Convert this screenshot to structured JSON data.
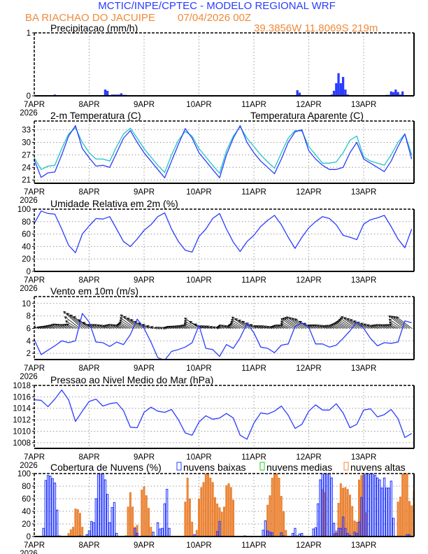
{
  "header": {
    "title": "MCTIC/INPE/CPTEC - MODELO REGIONAL WRF",
    "location": "BA RIACHAO DO JACUIPE",
    "datetime": "07/04/2026 00Z",
    "coords": "39.3856W 11.8069S 219m"
  },
  "colors": {
    "title": "#2a3cff",
    "subtitle": "#f08a3a",
    "blue": "#2a3cff",
    "cyan": "#22c4c4",
    "green": "#22cc22",
    "orange": "#f08a3a",
    "grid": "#9a9a9a"
  },
  "x_axis": {
    "day_labels": [
      "7APR",
      "8APR",
      "9APR",
      "10APR",
      "11APR",
      "12APR",
      "13APR"
    ],
    "year": "2026"
  },
  "times_3h": [
    "7APR 00Z",
    "7APR 03Z",
    "7APR 06Z",
    "7APR 09Z",
    "7APR 12Z",
    "7APR 15Z",
    "7APR 18Z",
    "7APR 21Z",
    "8APR 00Z",
    "8APR 03Z",
    "8APR 06Z",
    "8APR 09Z",
    "8APR 12Z",
    "8APR 15Z",
    "8APR 18Z",
    "8APR 21Z",
    "9APR 00Z",
    "9APR 03Z",
    "9APR 06Z",
    "9APR 09Z",
    "9APR 12Z",
    "9APR 15Z",
    "9APR 18Z",
    "9APR 21Z",
    "10APR 00Z",
    "10APR 03Z",
    "10APR 06Z",
    "10APR 09Z",
    "10APR 12Z",
    "10APR 15Z",
    "10APR 18Z",
    "10APR 21Z",
    "11APR 00Z",
    "11APR 03Z",
    "11APR 06Z",
    "11APR 09Z",
    "11APR 12Z",
    "11APR 15Z",
    "11APR 18Z",
    "11APR 21Z",
    "12APR 00Z",
    "12APR 03Z",
    "12APR 06Z",
    "12APR 09Z",
    "12APR 12Z",
    "12APR 15Z",
    "12APR 18Z",
    "12APR 21Z",
    "13APR 00Z",
    "13APR 03Z",
    "13APR 06Z",
    "13APR 09Z",
    "13APR 12Z",
    "13APR 15Z",
    "13APR 18Z",
    "13APR 21Z"
  ],
  "chart_data": [
    {
      "type": "bar",
      "title": "Precipitacao (mm/h)",
      "ylim": [
        0,
        1
      ],
      "yticks": [
        0,
        1
      ],
      "grid": true,
      "bar_runs_hourly": [
        {
          "start": "7APR 09Z",
          "values": [
            0.02
          ]
        },
        {
          "start": "8APR 04Z",
          "values": [
            0.01
          ]
        },
        {
          "start": "8APR 07Z",
          "values": [
            0.1,
            0.08,
            0,
            0.02,
            0.02,
            0.02,
            0.02,
            0.04,
            0.015,
            0.015
          ]
        },
        {
          "start": "8APR 20Z",
          "values": [
            0.01
          ]
        },
        {
          "start": "11APR 19Z",
          "values": [
            0.09,
            0.05
          ]
        },
        {
          "start": "12APR 05Z",
          "values": [
            0.005,
            0.005,
            0.005
          ]
        },
        {
          "start": "12APR 10Z",
          "values": [
            0.02,
            0.08,
            0.2,
            0.36,
            0.2,
            0.3,
            0.1,
            0.02,
            0.01
          ]
        },
        {
          "start": "13APR 05Z",
          "values": [
            0.01
          ]
        },
        {
          "start": "13APR 10Z",
          "values": [
            0.015,
            0.015,
            0.07,
            0.06,
            0.1,
            0.06,
            0.02,
            0.07
          ]
        }
      ]
    },
    {
      "type": "line",
      "title": "2-m Temperatura (C)",
      "ylim": [
        20.2,
        35.1
      ],
      "yticks": [
        21,
        24,
        27,
        30,
        33
      ],
      "grid": true,
      "series": [
        {
          "key": "temperature",
          "color": "blue",
          "values": [
            25.8,
            21.6,
            22.7,
            22.9,
            27,
            31.5,
            34,
            28.5,
            26.3,
            24.3,
            24.5,
            24.0,
            27.5,
            31,
            32.8,
            30,
            27.5,
            25.5,
            23.5,
            21.5,
            25.5,
            29.5,
            33.3,
            31,
            27.5,
            25.5,
            23.5,
            21.5,
            27,
            31,
            34,
            30,
            27.5,
            25.5,
            24,
            22.5,
            26,
            30,
            32.5,
            33,
            28,
            26,
            24.5,
            23.5,
            23.5,
            24,
            27.5,
            30,
            26,
            25,
            24,
            23,
            25.5,
            29,
            32,
            26
          ]
        },
        {
          "key": "apparent",
          "name": "Temperatura Aparente (C)",
          "color": "cyan",
          "values": [
            26.3,
            23.5,
            24.3,
            24.5,
            28.5,
            32,
            33.5,
            30,
            27.5,
            26,
            26,
            25.5,
            29,
            32,
            33.4,
            31,
            28.5,
            26.5,
            24.5,
            22.8,
            27,
            30.5,
            32.6,
            31.5,
            28.5,
            26.5,
            24.5,
            22.6,
            28,
            31.5,
            33.7,
            31,
            29,
            27,
            25.3,
            23.8,
            27.5,
            31,
            32.8,
            32.7,
            29,
            27,
            25,
            25,
            25.3,
            27.5,
            30.5,
            31.5,
            26.5,
            25.5,
            25,
            24.5,
            27,
            30,
            32,
            27
          ]
        }
      ]
    },
    {
      "type": "line",
      "title": "Umidade Relativa em 2m (%)",
      "ylim": [
        0,
        100
      ],
      "yticks": [
        0,
        20,
        40,
        60,
        80,
        100
      ],
      "grid": true,
      "series": [
        {
          "key": "rh",
          "color": "blue",
          "values": [
            77,
            97,
            93,
            92,
            68,
            42,
            30,
            60,
            73,
            85,
            84,
            88,
            68,
            48,
            40,
            52,
            66,
            75,
            88,
            94,
            68,
            48,
            34,
            31,
            56,
            68,
            85,
            93,
            68,
            47,
            32,
            48,
            58,
            72,
            82,
            90,
            75,
            55,
            37,
            55,
            70,
            80,
            88,
            85,
            75,
            58,
            55,
            51,
            76,
            83,
            86,
            90,
            72,
            52,
            38,
            68
          ]
        }
      ]
    },
    {
      "type": "line",
      "title": "Vento em 10m (m/s)",
      "ylim": [
        1,
        11.1
      ],
      "yticks": [
        2,
        4,
        6,
        8,
        10
      ],
      "grid": true,
      "vector_baseline": 6,
      "series": [
        {
          "key": "wind_speed",
          "color": "blue",
          "values": [
            4.2,
            1.8,
            2.5,
            3.2,
            4.0,
            3.7,
            4.0,
            8.4,
            7.0,
            3.8,
            3.7,
            3.1,
            3.8,
            3.4,
            5.0,
            7.5,
            6.0,
            3.8,
            1.3,
            0.9,
            2.3,
            2.6,
            3.0,
            3.7,
            6.5,
            2.8,
            2.6,
            1.5,
            3.4,
            2.8,
            4.5,
            6.8,
            5.3,
            3.0,
            2.8,
            2.1,
            3.3,
            3.5,
            6.3,
            6.9,
            6.2,
            3.5,
            3.5,
            3.0,
            3.3,
            4.4,
            5.6,
            7.0,
            6.0,
            4.4,
            3.2,
            3.7,
            3.6,
            3.8,
            7.2,
            6.9
          ]
        }
      ]
    },
    {
      "type": "line",
      "title": "Pressao ao Nivel Medio do Mar (hPa)",
      "ylim": [
        1007,
        1018
      ],
      "yticks": [
        1008,
        1010,
        1012,
        1014,
        1016,
        1018
      ],
      "grid": true,
      "series": [
        {
          "key": "mslp",
          "color": "blue",
          "values": [
            1015.5,
            1015.4,
            1014.3,
            1015.6,
            1017.2,
            1015.5,
            1011.7,
            1013.5,
            1015.2,
            1015.6,
            1014.4,
            1014.8,
            1015.0,
            1013.6,
            1010.7,
            1010.6,
            1013.3,
            1014.2,
            1013.5,
            1013.3,
            1013.8,
            1012.0,
            1009.7,
            1009.3,
            1011.6,
            1012.7,
            1012.1,
            1012.3,
            1013.1,
            1012.3,
            1009.3,
            1008.6,
            1011.4,
            1013.2,
            1013.0,
            1013.5,
            1014.4,
            1012.8,
            1010.5,
            1011.2,
            1013.5,
            1014.6,
            1013.7,
            1013.7,
            1014.8,
            1013.2,
            1010.6,
            1011.2,
            1013.7,
            1013.9,
            1012.5,
            1012.9,
            1013.8,
            1012.2,
            1008.9,
            1009.6
          ]
        }
      ]
    },
    {
      "type": "bar",
      "title": "Cobertura de Nuvens (%)",
      "ylim": [
        0,
        100
      ],
      "yticks": [
        0,
        20,
        40,
        60,
        80,
        100
      ],
      "grid": true,
      "legend": "top",
      "series": [
        {
          "key": "low",
          "name": "nuvens baixas",
          "color": "blue",
          "style": "outline",
          "runs_hourly": [
            {
              "start": "7APR 04Z",
              "values": [
                13,
                89,
                97,
                96,
                92,
                85,
                42,
                1
              ]
            },
            {
              "start": "7APR 20Z",
              "values": [
                1
              ]
            },
            {
              "start": "7APR 23Z",
              "values": [
                3,
                9,
                24,
                22,
                60,
                100,
                100,
                100,
                90,
                67,
                22,
                46,
                54,
                5
              ]
            },
            {
              "start": "8APR 20Z",
              "values": [
                13,
                5
              ]
            },
            {
              "start": "9APR 04Z",
              "values": [
                7,
                0,
                22,
                12,
                13,
                52,
                75,
                13
              ]
            },
            {
              "start": "9APR 22Z",
              "values": [
                3
              ]
            },
            {
              "start": "10APR 08Z",
              "values": [
                8,
                24
              ]
            },
            {
              "start": "10APR 20Z",
              "values": [
                1
              ]
            },
            {
              "start": "11APR 04Z",
              "values": [
                10,
                25,
                9,
                7,
                6
              ]
            },
            {
              "start": "11APR 12Z",
              "values": [
                6,
                1
              ]
            },
            {
              "start": "11APR 17Z",
              "values": [
                5,
                13,
                1,
                4,
                5
              ]
            },
            {
              "start": "12APR 02Z",
              "values": [
                12,
                14,
                52,
                90,
                100,
                100,
                100,
                100,
                93,
                21,
                5,
                13,
                13,
                31,
                13,
                5,
                2
              ]
            },
            {
              "start": "12APR 20Z",
              "values": [
                7,
                5,
                23,
                62,
                97,
                100,
                100,
                100,
                100,
                97,
                93,
                90,
                77,
                93,
                77,
                77,
                88,
                29
              ]
            },
            {
              "start": "13APR 19Z",
              "values": [
                3,
                3
              ]
            }
          ]
        },
        {
          "key": "medium",
          "name": "nuvens medias",
          "color": "green",
          "style": "outline",
          "runs_hourly": [
            {
              "start": "8APR 16Z",
              "values": [
                1
              ]
            }
          ]
        },
        {
          "key": "high",
          "name": "nuvens altas",
          "color": "orange",
          "style": "filled",
          "runs_hourly": [
            {
              "start": "7APR 15Z",
              "values": [
                5,
                11,
                15,
                44,
                43,
                37,
                15
              ]
            },
            {
              "start": "8APR 17Z",
              "values": [
                47,
                70,
                47,
                15,
                18
              ]
            },
            {
              "start": "8APR 23Z",
              "values": [
                74,
                79,
                65,
                45,
                15
              ]
            },
            {
              "start": "9APR 18Z",
              "values": [
                55,
                93,
                60,
                23
              ]
            },
            {
              "start": "9APR 23Z",
              "values": [
                10,
                60,
                78,
                86,
                100,
                100,
                93,
                86,
                62,
                52,
                46,
                39,
                47,
                81,
                84,
                78,
                58
              ]
            },
            {
              "start": "11APR 06Z",
              "values": [
                50,
                65,
                93,
                100,
                100,
                93,
                64,
                40,
                10
              ]
            },
            {
              "start": "12APR 06Z",
              "values": [
                75,
                70
              ]
            },
            {
              "start": "12APR 11Z",
              "values": [
                5,
                9,
                53,
                84,
                77,
                78,
                75,
                66,
                48,
                25,
                23,
                90,
                97,
                100,
                38
              ]
            },
            {
              "start": "13APR 15Z",
              "values": [
                55,
                63,
                100,
                100,
                100,
                56,
                49,
                72
              ]
            }
          ]
        }
      ]
    }
  ]
}
